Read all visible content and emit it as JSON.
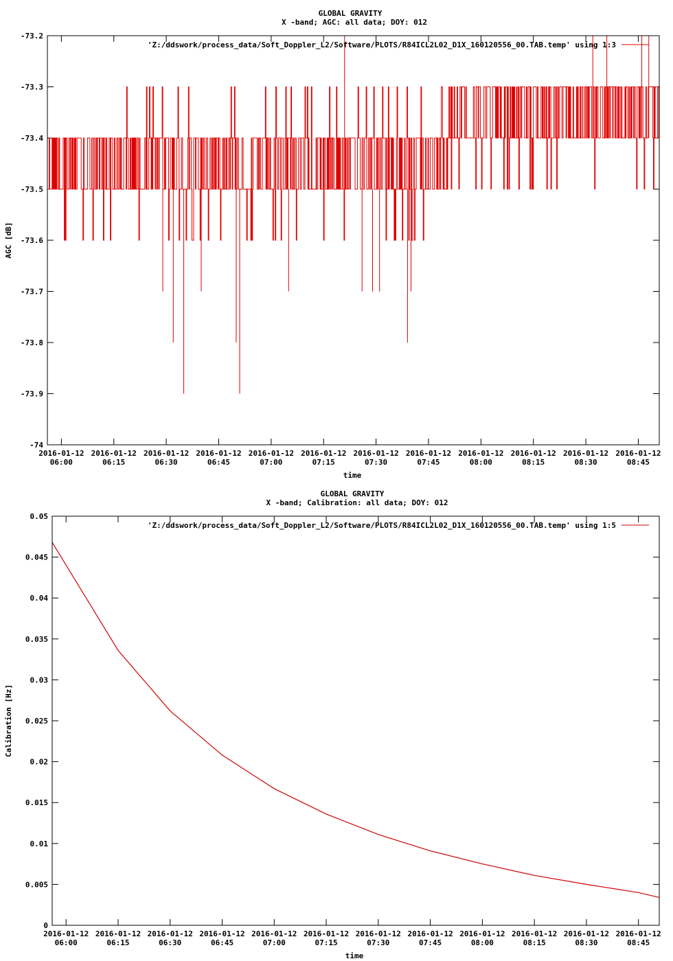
{
  "chart_data": [
    {
      "type": "line",
      "title": "GLOBAL GRAVITY",
      "subtitle": "X -band; AGC: all data; DOY: 012",
      "xlabel": "time",
      "ylabel": "AGC [dB]",
      "legend": "'Z:/ddswork/process_data/Soft_Doppler_L2/Software/PLOTS/R84ICL2L02_D1X_160120556_00.TAB.temp' using 1:3",
      "legend_position": "top-right",
      "color": "#e00000",
      "x_time_start": "05:56",
      "x_time_end": "08:51",
      "x_ticks": [
        "06:00",
        "06:15",
        "06:30",
        "06:45",
        "07:00",
        "07:15",
        "07:30",
        "07:45",
        "08:00",
        "08:15",
        "08:30",
        "08:45"
      ],
      "x_tick_date": "2016-01-12",
      "ylim": [
        -74,
        -73.2
      ],
      "y_ticks": [
        "-74",
        "-73.9",
        "-73.8",
        "-73.7",
        "-73.6",
        "-73.5",
        "-73.4",
        "-73.3",
        "-73.2"
      ],
      "baseline_segments": [
        {
          "from": "05:56",
          "to": "07:50",
          "values": [
            -73.4,
            -73.5
          ]
        },
        {
          "from": "07:50",
          "to": "08:51",
          "values": [
            -73.3,
            -73.4
          ]
        }
      ],
      "spikes": [
        {
          "time": "06:29",
          "value": -73.7
        },
        {
          "time": "06:32",
          "value": -73.8
        },
        {
          "time": "06:35",
          "value": -73.9
        },
        {
          "time": "06:40",
          "value": -73.7
        },
        {
          "time": "06:50",
          "value": -73.8
        },
        {
          "time": "06:51",
          "value": -73.9
        },
        {
          "time": "07:05",
          "value": -73.7
        },
        {
          "time": "07:21",
          "value": -73.2
        },
        {
          "time": "07:26",
          "value": -73.7
        },
        {
          "time": "07:29",
          "value": -73.7
        },
        {
          "time": "07:31",
          "value": -73.7
        },
        {
          "time": "07:39",
          "value": -73.8
        },
        {
          "time": "07:40",
          "value": -73.7
        },
        {
          "time": "08:32",
          "value": -73.2
        },
        {
          "time": "08:36",
          "value": -73.2
        },
        {
          "time": "08:46",
          "value": -73.2
        },
        {
          "time": "08:48",
          "value": -73.2
        }
      ],
      "grid": false
    },
    {
      "type": "line",
      "title": "GLOBAL GRAVITY",
      "subtitle": "X -band; Calibration: all data; DOY: 012",
      "xlabel": "time",
      "ylabel": "Calibration [Hz]",
      "legend": "'Z:/ddswork/process_data/Soft_Doppler_L2/Software/PLOTS/R84ICL2L02_D1X_160120556_00.TAB.temp' using 1:5",
      "legend_position": "top-right",
      "color": "#cc0000",
      "x_time_start": "05:56",
      "x_time_end": "08:51",
      "x_ticks": [
        "06:00",
        "06:15",
        "06:30",
        "06:45",
        "07:00",
        "07:15",
        "07:30",
        "07:45",
        "08:00",
        "08:15",
        "08:30",
        "08:45"
      ],
      "x_tick_date": "2016-01-12",
      "ylim": [
        0,
        0.05
      ],
      "y_ticks": [
        "0",
        "0.005",
        "0.01",
        "0.015",
        "0.02",
        "0.025",
        "0.03",
        "0.035",
        "0.04",
        "0.045",
        "0.05"
      ],
      "x": [
        "05:56",
        "06:15",
        "06:30",
        "06:45",
        "07:00",
        "07:15",
        "07:30",
        "07:45",
        "08:00",
        "08:15",
        "08:30",
        "08:45",
        "08:51"
      ],
      "y": [
        0.0468,
        0.0336,
        0.0262,
        0.0208,
        0.0167,
        0.0136,
        0.0111,
        0.0091,
        0.0075,
        0.0061,
        0.005,
        0.004,
        0.0034
      ],
      "grid": false
    }
  ]
}
